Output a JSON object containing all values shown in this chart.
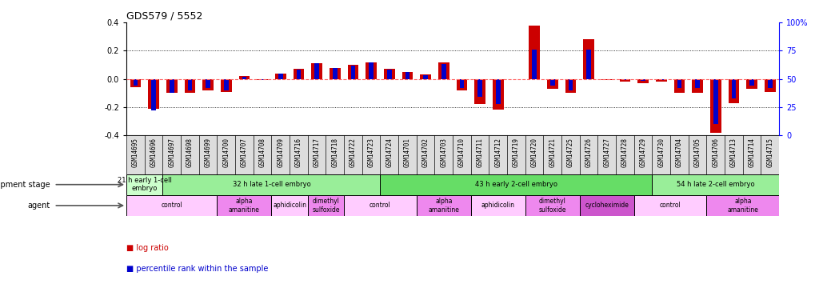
{
  "title": "GDS579 / 5552",
  "samples": [
    "GSM14695",
    "GSM14696",
    "GSM14697",
    "GSM14698",
    "GSM14699",
    "GSM14700",
    "GSM14707",
    "GSM14708",
    "GSM14709",
    "GSM14716",
    "GSM14717",
    "GSM14718",
    "GSM14722",
    "GSM14723",
    "GSM14724",
    "GSM14701",
    "GSM14702",
    "GSM14703",
    "GSM14710",
    "GSM14711",
    "GSM14712",
    "GSM14719",
    "GSM14720",
    "GSM14721",
    "GSM14725",
    "GSM14726",
    "GSM14727",
    "GSM14728",
    "GSM14729",
    "GSM14730",
    "GSM14704",
    "GSM14705",
    "GSM14706",
    "GSM14713",
    "GSM14714",
    "GSM14715"
  ],
  "log_ratio": [
    -0.06,
    -0.21,
    -0.1,
    -0.1,
    -0.08,
    -0.09,
    0.02,
    -0.01,
    0.04,
    0.07,
    0.11,
    0.08,
    0.1,
    0.12,
    0.07,
    0.05,
    0.03,
    0.12,
    -0.08,
    -0.18,
    -0.22,
    0.0,
    0.38,
    -0.07,
    -0.1,
    0.28,
    -0.01,
    -0.02,
    -0.03,
    -0.02,
    -0.1,
    -0.1,
    -0.38,
    -0.17,
    -0.07,
    -0.09
  ],
  "percentile_rank": [
    44,
    22,
    38,
    40,
    42,
    40,
    52,
    49,
    55,
    58,
    64,
    60,
    62,
    65,
    58,
    56,
    53,
    63,
    42,
    34,
    28,
    50,
    76,
    44,
    40,
    76,
    50,
    49,
    48,
    49,
    42,
    42,
    10,
    33,
    44,
    42
  ],
  "ylim": [
    -0.4,
    0.4
  ],
  "yticks": [
    -0.4,
    -0.2,
    0.0,
    0.2,
    0.4
  ],
  "right_yticks_pct": [
    0,
    25,
    50,
    75,
    100
  ],
  "right_yticklabels": [
    "0",
    "25",
    "50",
    "75",
    "100%"
  ],
  "dev_stage_groups": [
    {
      "label": "21 h early 1-cell\nembryo",
      "start": 0,
      "end": 2,
      "color": "#ccffcc"
    },
    {
      "label": "32 h late 1-cell embryo",
      "start": 2,
      "end": 14,
      "color": "#99ee99"
    },
    {
      "label": "43 h early 2-cell embryo",
      "start": 14,
      "end": 29,
      "color": "#66dd66"
    },
    {
      "label": "54 h late 2-cell embryo",
      "start": 29,
      "end": 36,
      "color": "#99ee99"
    }
  ],
  "agent_groups": [
    {
      "label": "control",
      "start": 0,
      "end": 5,
      "color": "#ffccff"
    },
    {
      "label": "alpha\namanitine",
      "start": 5,
      "end": 8,
      "color": "#ee88ee"
    },
    {
      "label": "aphidicolin",
      "start": 8,
      "end": 10,
      "color": "#ffccff"
    },
    {
      "label": "dimethyl\nsulfoxide",
      "start": 10,
      "end": 12,
      "color": "#ee88ee"
    },
    {
      "label": "control",
      "start": 12,
      "end": 16,
      "color": "#ffccff"
    },
    {
      "label": "alpha\namanitine",
      "start": 16,
      "end": 19,
      "color": "#ee88ee"
    },
    {
      "label": "aphidicolin",
      "start": 19,
      "end": 22,
      "color": "#ffccff"
    },
    {
      "label": "dimethyl\nsulfoxide",
      "start": 22,
      "end": 25,
      "color": "#ee88ee"
    },
    {
      "label": "cycloheximide",
      "start": 25,
      "end": 28,
      "color": "#cc55cc"
    },
    {
      "label": "control",
      "start": 28,
      "end": 32,
      "color": "#ffccff"
    },
    {
      "label": "alpha\namanitine",
      "start": 32,
      "end": 36,
      "color": "#ee88ee"
    }
  ],
  "log_ratio_color": "#cc0000",
  "percentile_color": "#0000cc",
  "hline_color": "#ff6666",
  "sample_bg_color": "#dddddd",
  "tick_label_fontsize": 5.5,
  "annotation_fontsize": 6.0,
  "label_fontsize": 7.0
}
